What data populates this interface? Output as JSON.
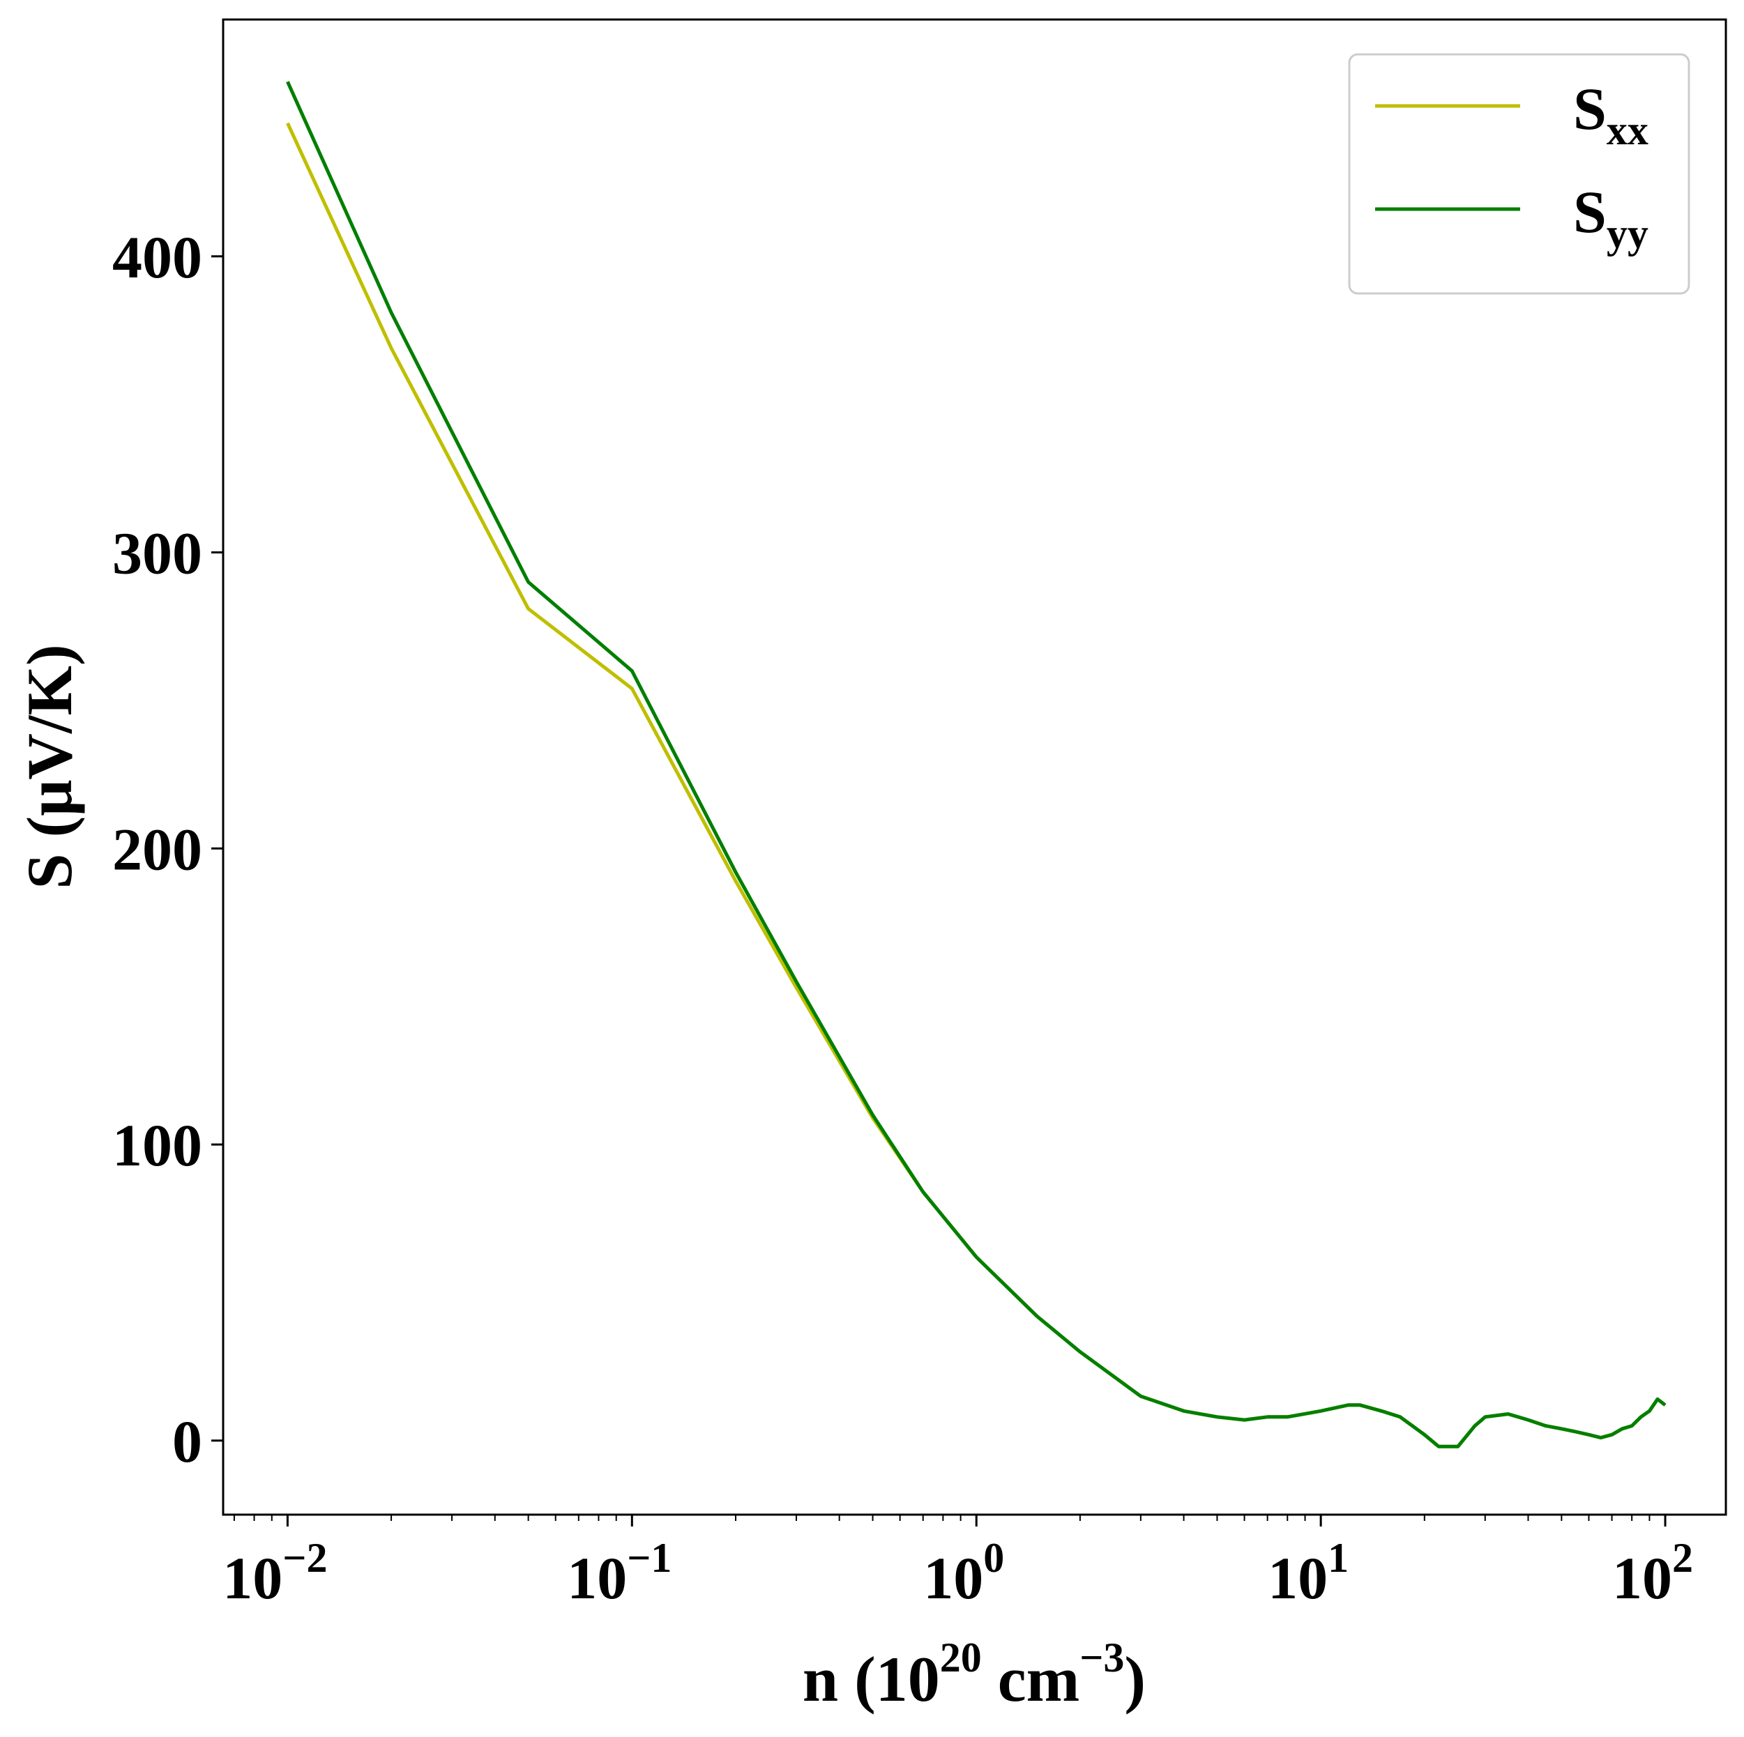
{
  "chart_data": {
    "type": "line",
    "xscale": "log",
    "xlim": [
      0.0065,
      150
    ],
    "ylim": [
      -25,
      480
    ],
    "grid": false,
    "legend_position": "top-right",
    "xlabel": {
      "base": "n (10",
      "exp": "20",
      "mid": " cm",
      "exp2": "−3",
      "end": ")"
    },
    "ylabel": "S (μV/K)",
    "x_ticks": [
      {
        "value": 0.01,
        "base": "10",
        "exp": "−2"
      },
      {
        "value": 0.1,
        "base": "10",
        "exp": "−1"
      },
      {
        "value": 1,
        "base": "10",
        "exp": "0"
      },
      {
        "value": 10,
        "base": "10",
        "exp": "1"
      },
      {
        "value": 100,
        "base": "10",
        "exp": "2"
      }
    ],
    "y_ticks": [
      {
        "value": 0,
        "label": "0"
      },
      {
        "value": 100,
        "label": "100"
      },
      {
        "value": 200,
        "label": "200"
      },
      {
        "value": 300,
        "label": "300"
      },
      {
        "value": 400,
        "label": "400"
      }
    ],
    "series": [
      {
        "name": "S",
        "sub": "xx",
        "color": "#bfbf00",
        "points": [
          [
            0.01,
            445
          ],
          [
            0.02,
            369
          ],
          [
            0.05,
            281
          ],
          [
            0.1,
            254
          ],
          [
            0.2,
            189
          ],
          [
            0.3,
            153
          ],
          [
            0.5,
            109
          ],
          [
            0.7,
            84
          ],
          [
            1.0,
            62
          ],
          [
            1.5,
            42
          ],
          [
            2.0,
            30
          ],
          [
            3.0,
            15
          ],
          [
            4.0,
            10
          ],
          [
            5.0,
            8
          ],
          [
            6.0,
            7
          ],
          [
            7.0,
            8
          ],
          [
            8.0,
            8
          ],
          [
            10.0,
            10
          ],
          [
            12.0,
            12
          ],
          [
            13.0,
            12
          ],
          [
            15.0,
            10
          ],
          [
            17.0,
            8
          ],
          [
            20.0,
            2
          ],
          [
            22.0,
            -2
          ],
          [
            25.0,
            -2
          ],
          [
            28.0,
            5
          ],
          [
            30.0,
            8
          ],
          [
            35.0,
            9
          ],
          [
            40.0,
            7
          ],
          [
            45.0,
            5
          ],
          [
            50.0,
            4
          ],
          [
            55.0,
            3
          ],
          [
            60.0,
            2
          ],
          [
            65.0,
            1
          ],
          [
            70.0,
            2
          ],
          [
            75.0,
            4
          ],
          [
            80.0,
            5
          ],
          [
            85.0,
            8
          ],
          [
            90.0,
            10
          ],
          [
            95.0,
            14
          ],
          [
            100.0,
            12
          ]
        ]
      },
      {
        "name": "S",
        "sub": "yy",
        "color": "#007f00",
        "points": [
          [
            0.01,
            459
          ],
          [
            0.02,
            381
          ],
          [
            0.05,
            290
          ],
          [
            0.1,
            260
          ],
          [
            0.2,
            192
          ],
          [
            0.3,
            155
          ],
          [
            0.5,
            110
          ],
          [
            0.7,
            84
          ],
          [
            1.0,
            62
          ],
          [
            1.5,
            42
          ],
          [
            2.0,
            30
          ],
          [
            3.0,
            15
          ],
          [
            4.0,
            10
          ],
          [
            5.0,
            8
          ],
          [
            6.0,
            7
          ],
          [
            7.0,
            8
          ],
          [
            8.0,
            8
          ],
          [
            10.0,
            10
          ],
          [
            12.0,
            12
          ],
          [
            13.0,
            12
          ],
          [
            15.0,
            10
          ],
          [
            17.0,
            8
          ],
          [
            20.0,
            2
          ],
          [
            22.0,
            -2
          ],
          [
            25.0,
            -2
          ],
          [
            28.0,
            5
          ],
          [
            30.0,
            8
          ],
          [
            35.0,
            9
          ],
          [
            40.0,
            7
          ],
          [
            45.0,
            5
          ],
          [
            50.0,
            4
          ],
          [
            55.0,
            3
          ],
          [
            60.0,
            2
          ],
          [
            65.0,
            1
          ],
          [
            70.0,
            2
          ],
          [
            75.0,
            4
          ],
          [
            80.0,
            5
          ],
          [
            85.0,
            8
          ],
          [
            90.0,
            10
          ],
          [
            95.0,
            14
          ],
          [
            100.0,
            12
          ]
        ]
      }
    ]
  }
}
